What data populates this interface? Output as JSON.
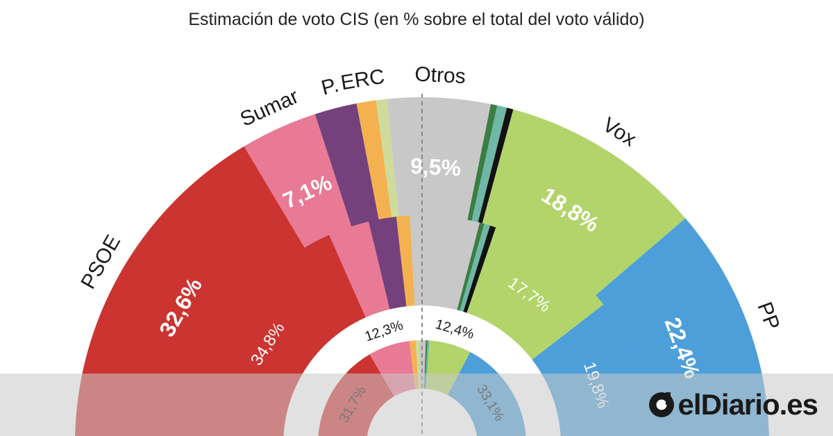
{
  "title": "Estimación de voto CIS (en % sobre el total del voto válido)",
  "brand": "elDiario.es",
  "colors": {
    "PSOE": "#cc3431",
    "Sumar": "#e97a96",
    "Podemos": "#74417c",
    "ERC": "#f3b24f",
    "small_left": "#cfdb9b",
    "Otros": "#c8c8c8",
    "small_green1": "#3c7d43",
    "small_teal": "#6fb7a7",
    "small_black": "#111111",
    "Vox": "#b2d46a",
    "PP": "#4d9fda"
  },
  "chart_data": {
    "type": "donut-semicircle",
    "title": "Estimación de voto CIS (en % sobre el total del voto válido)",
    "rings": [
      {
        "ring": "outer",
        "series": [
          {
            "name": "PSOE",
            "value": 32.6,
            "label": "32,6%",
            "party_label": "PSOE"
          },
          {
            "name": "Sumar",
            "value": 7.1,
            "label": "7,1%",
            "party_label": "Sumar"
          },
          {
            "name": "Podemos",
            "value": 3.9,
            "label": "",
            "party_label": "P."
          },
          {
            "name": "ERC",
            "value": 1.8,
            "label": "",
            "party_label": "ERC"
          },
          {
            "name": "small_left",
            "value": 1.0,
            "label": "",
            "party_label": ""
          },
          {
            "name": "Otros",
            "value": 9.5,
            "label": "9,5%",
            "party_label": "Otros"
          },
          {
            "name": "small_green1",
            "value": 0.6,
            "label": "",
            "party_label": ""
          },
          {
            "name": "small_teal",
            "value": 0.9,
            "label": "",
            "party_label": ""
          },
          {
            "name": "small_black",
            "value": 0.6,
            "label": "",
            "party_label": ""
          },
          {
            "name": "Vox",
            "value": 18.8,
            "label": "18,8%",
            "party_label": "Vox"
          },
          {
            "name": "PP",
            "value": 22.4,
            "label": "22,4%",
            "party_label": "PP"
          }
        ]
      },
      {
        "ring": "middle",
        "series": [
          {
            "name": "PSOE",
            "value": 34.8,
            "label": "34,8%"
          },
          {
            "name": "Sumar",
            "value": 5.5,
            "label": ""
          },
          {
            "name": "Podemos",
            "value": 3.7,
            "label": ""
          },
          {
            "name": "ERC",
            "value": 1.8,
            "label": ""
          },
          {
            "name": "Otros",
            "value": 9.3,
            "label": ""
          },
          {
            "name": "small_green1",
            "value": 0.6,
            "label": ""
          },
          {
            "name": "small_teal",
            "value": 0.8,
            "label": ""
          },
          {
            "name": "small_black",
            "value": 0.8,
            "label": ""
          },
          {
            "name": "Vox",
            "value": 17.7,
            "label": "17,7%"
          },
          {
            "name": "PP",
            "value": 19.8,
            "label": "19,8%"
          }
        ]
      },
      {
        "ring": "inner",
        "series": [
          {
            "name": "PSOE",
            "value": 31.7,
            "label": "31,7%"
          },
          {
            "name": "Sumar",
            "value": 12.3,
            "label": "12,3%"
          },
          {
            "name": "ERC",
            "value": 1.8,
            "label": ""
          },
          {
            "name": "small_left",
            "value": 1.0,
            "label": ""
          },
          {
            "name": "Otros",
            "value": 2.0,
            "label": ""
          },
          {
            "name": "small_green1",
            "value": 0.5,
            "label": ""
          },
          {
            "name": "small_teal",
            "value": 0.6,
            "label": ""
          },
          {
            "name": "Vox",
            "value": 12.4,
            "label": "12,4%"
          },
          {
            "name": "PP",
            "value": 33.1,
            "label": "33,1%"
          }
        ]
      }
    ]
  }
}
